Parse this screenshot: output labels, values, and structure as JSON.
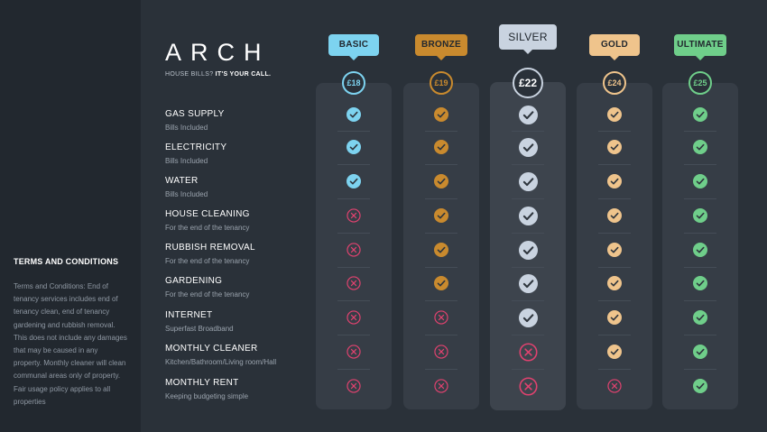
{
  "brand": {
    "logo": "ARCH",
    "tagline_plain": "HOUSE BILLS?",
    "tagline_bold": "IT'S YOUR CALL."
  },
  "terms": {
    "title": "TERMS AND CONDITIONS",
    "text": "Terms and Conditions: End of tenancy services includes end of tenancy clean, end of tenancy gardening and rubbish removal. This does not include any damages that may be caused in any property. Monthly cleaner will clean communal areas only of property. Fair usage policy applies to all properties"
  },
  "features": [
    {
      "name": "GAS SUPPLY",
      "sub": "Bills Included"
    },
    {
      "name": "ELECTRICITY",
      "sub": "Bills Included"
    },
    {
      "name": "WATER",
      "sub": "Bills Included"
    },
    {
      "name": "HOUSE CLEANING",
      "sub": "For the end of the tenancy"
    },
    {
      "name": "RUBBISH REMOVAL",
      "sub": "For the end of the tenancy"
    },
    {
      "name": "GARDENING",
      "sub": "For the end of the tenancy"
    },
    {
      "name": "INTERNET",
      "sub": "Superfast Broadband"
    },
    {
      "name": "MONTHLY CLEANER",
      "sub": "Kitchen/Bathroom/Living room/Hall"
    },
    {
      "name": "MONTHLY RENT",
      "sub": "Keeping budgeting simple"
    }
  ],
  "plans": [
    {
      "name": "BASIC",
      "price": "£18",
      "color": "#7dd3f0",
      "icon": "check-icon",
      "included": [
        true,
        true,
        true,
        false,
        false,
        false,
        false,
        false,
        false
      ]
    },
    {
      "name": "BRONZE",
      "price": "£19",
      "color": "#c98a2e",
      "icon": "check-icon",
      "included": [
        true,
        true,
        true,
        true,
        true,
        true,
        false,
        false,
        false
      ]
    },
    {
      "name": "SILVER",
      "price": "£22",
      "color": "#c9d3e0",
      "icon": "check-icon",
      "included": [
        true,
        true,
        true,
        true,
        true,
        true,
        true,
        false,
        false
      ]
    },
    {
      "name": "GOLD",
      "price": "£24",
      "color": "#efc48c",
      "icon": "check-icon",
      "included": [
        true,
        true,
        true,
        true,
        true,
        true,
        true,
        true,
        false
      ]
    },
    {
      "name": "ULTIMATE",
      "price": "£25",
      "color": "#6fce8a",
      "icon": "check-icon",
      "included": [
        true,
        true,
        true,
        true,
        true,
        true,
        true,
        true,
        true
      ]
    }
  ],
  "cross_color": "#e0426f"
}
